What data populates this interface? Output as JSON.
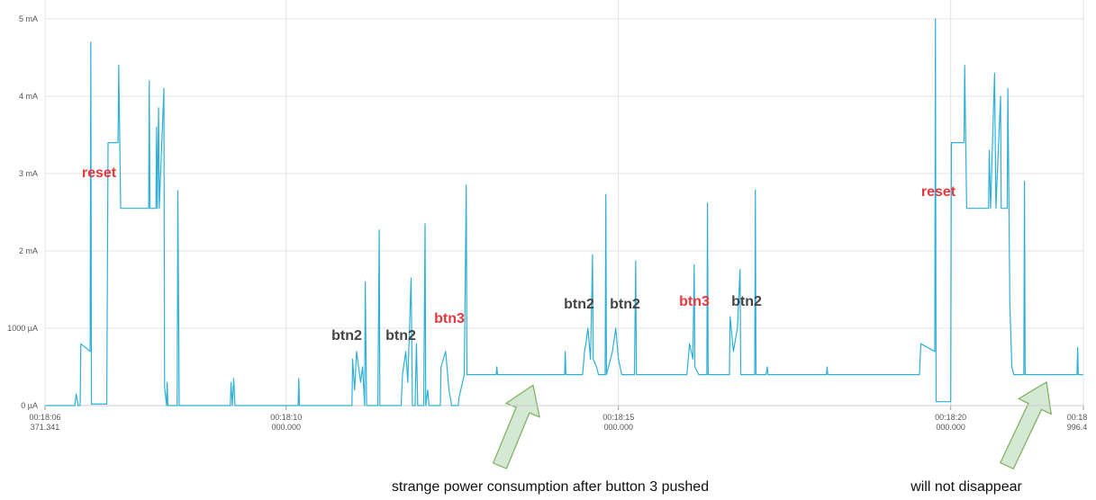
{
  "chart_data": {
    "type": "line",
    "color": "#2eb0d6",
    "grid": true,
    "xlim": [
      6.371341,
      21.9964
    ],
    "xticks": [
      {
        "value": 6.371341,
        "label": "00:18:06\n371.341"
      },
      {
        "value": 10,
        "label": "00:18:10\n000.000"
      },
      {
        "value": 15,
        "label": "00:18:15\n000.000"
      },
      {
        "value": 20,
        "label": "00:18:20\n000.000"
      },
      {
        "value": 21.9964,
        "label": "00:18\n996.4"
      }
    ],
    "ylim": [
      0,
      5000
    ],
    "yticks": [
      {
        "value": 0,
        "label": "0 µA"
      },
      {
        "value": 1000,
        "label": "1000 µA"
      },
      {
        "value": 2000,
        "label": "2 mA"
      },
      {
        "value": 3000,
        "label": "3 mA"
      },
      {
        "value": 4000,
        "label": "4 mA"
      },
      {
        "value": 5000,
        "label": "5 mA"
      }
    ],
    "x": [
      6.38,
      6.82,
      6.84,
      6.87,
      6.9,
      6.91,
      7.05,
      7.06,
      7.07,
      7.3,
      7.32,
      7.47,
      7.48,
      7.51,
      7.93,
      7.94,
      7.95,
      8.04,
      8.05,
      8.06,
      8.08,
      8.09,
      8.16,
      8.17,
      8.2,
      8.21,
      8.22,
      8.36,
      8.37,
      8.39,
      9.16,
      9.17,
      9.19,
      9.21,
      9.23,
      10.18,
      10.19,
      10.2,
      10.99,
      11.0,
      11.03,
      11.06,
      11.12,
      11.15,
      11.18,
      11.19,
      11.21,
      11.38,
      11.4,
      11.41,
      11.73,
      11.75,
      11.8,
      11.83,
      11.88,
      11.9,
      11.94,
      11.96,
      11.98,
      12.07,
      12.09,
      12.1,
      12.13,
      12.15,
      12.32,
      12.33,
      12.4,
      12.45,
      12.49,
      12.59,
      12.6,
      12.68,
      12.71,
      12.72,
      13.16,
      13.17,
      13.18,
      14.19,
      14.2,
      14.21,
      14.46,
      14.49,
      14.51,
      14.54,
      14.58,
      14.61,
      14.62,
      14.67,
      14.7,
      14.8,
      14.81,
      14.82,
      14.91,
      14.96,
      15.0,
      15.05,
      15.24,
      15.26,
      15.27,
      16.03,
      16.07,
      16.12,
      16.14,
      16.15,
      16.21,
      16.33,
      16.34,
      16.35,
      16.67,
      16.68,
      16.73,
      16.79,
      16.83,
      16.84,
      17.05,
      17.06,
      17.07,
      17.22,
      17.24,
      17.25,
      18.13,
      18.14,
      18.15,
      19.53,
      19.55,
      19.76,
      19.77,
      19.78,
      20.0,
      20.01,
      20.2,
      20.21,
      20.24,
      20.57,
      20.58,
      20.6,
      20.66,
      20.68,
      20.75,
      20.76,
      20.85,
      20.86,
      20.89,
      20.92,
      20.95,
      21.1,
      21.11,
      21.12,
      21.9,
      21.91,
      21.92,
      21.99
    ],
    "values": [
      0,
      0,
      150,
      0,
      0,
      800,
      700,
      4700,
      20,
      20,
      3400,
      3400,
      4400,
      2550,
      2550,
      4200,
      2550,
      2550,
      3600,
      2550,
      3850,
      2550,
      4100,
      250,
      0,
      300,
      0,
      0,
      2780,
      0,
      0,
      300,
      0,
      350,
      0,
      0,
      350,
      0,
      0,
      600,
      200,
      700,
      300,
      500,
      0,
      1600,
      0,
      0,
      2270,
      0,
      0,
      400,
      700,
      300,
      1650,
      0,
      0,
      800,
      0,
      0,
      2350,
      0,
      200,
      0,
      0,
      500,
      700,
      200,
      0,
      0,
      100,
      400,
      2850,
      400,
      400,
      500,
      400,
      400,
      700,
      400,
      400,
      700,
      800,
      1000,
      600,
      1950,
      600,
      500,
      400,
      400,
      2730,
      400,
      700,
      1000,
      600,
      400,
      400,
      1870,
      400,
      400,
      800,
      600,
      1820,
      500,
      400,
      400,
      2620,
      400,
      400,
      1150,
      700,
      1000,
      1760,
      400,
      400,
      2790,
      400,
      400,
      500,
      400,
      400,
      500,
      400,
      400,
      800,
      700,
      5000,
      50,
      50,
      3400,
      3400,
      4400,
      2550,
      2550,
      3300,
      2550,
      4300,
      2550,
      4000,
      2550,
      2550,
      4100,
      1300,
      500,
      400,
      400,
      2900,
      400,
      400,
      750,
      400,
      400
    ],
    "annotations": [
      {
        "text": "reset",
        "color": "#e8383d"
      },
      {
        "text": "btn2",
        "color": "#444444"
      },
      {
        "text": "btn2",
        "color": "#444444"
      },
      {
        "text": "btn3",
        "color": "#e8383d"
      },
      {
        "text": "btn2",
        "color": "#444444"
      },
      {
        "text": "btn2",
        "color": "#444444"
      },
      {
        "text": "btn3",
        "color": "#e8383d"
      },
      {
        "text": "btn2",
        "color": "#444444"
      },
      {
        "text": "reset",
        "color": "#e8383d"
      }
    ],
    "captions": [
      "strange power consumption after button 3 pushed",
      "will not disappear"
    ]
  }
}
